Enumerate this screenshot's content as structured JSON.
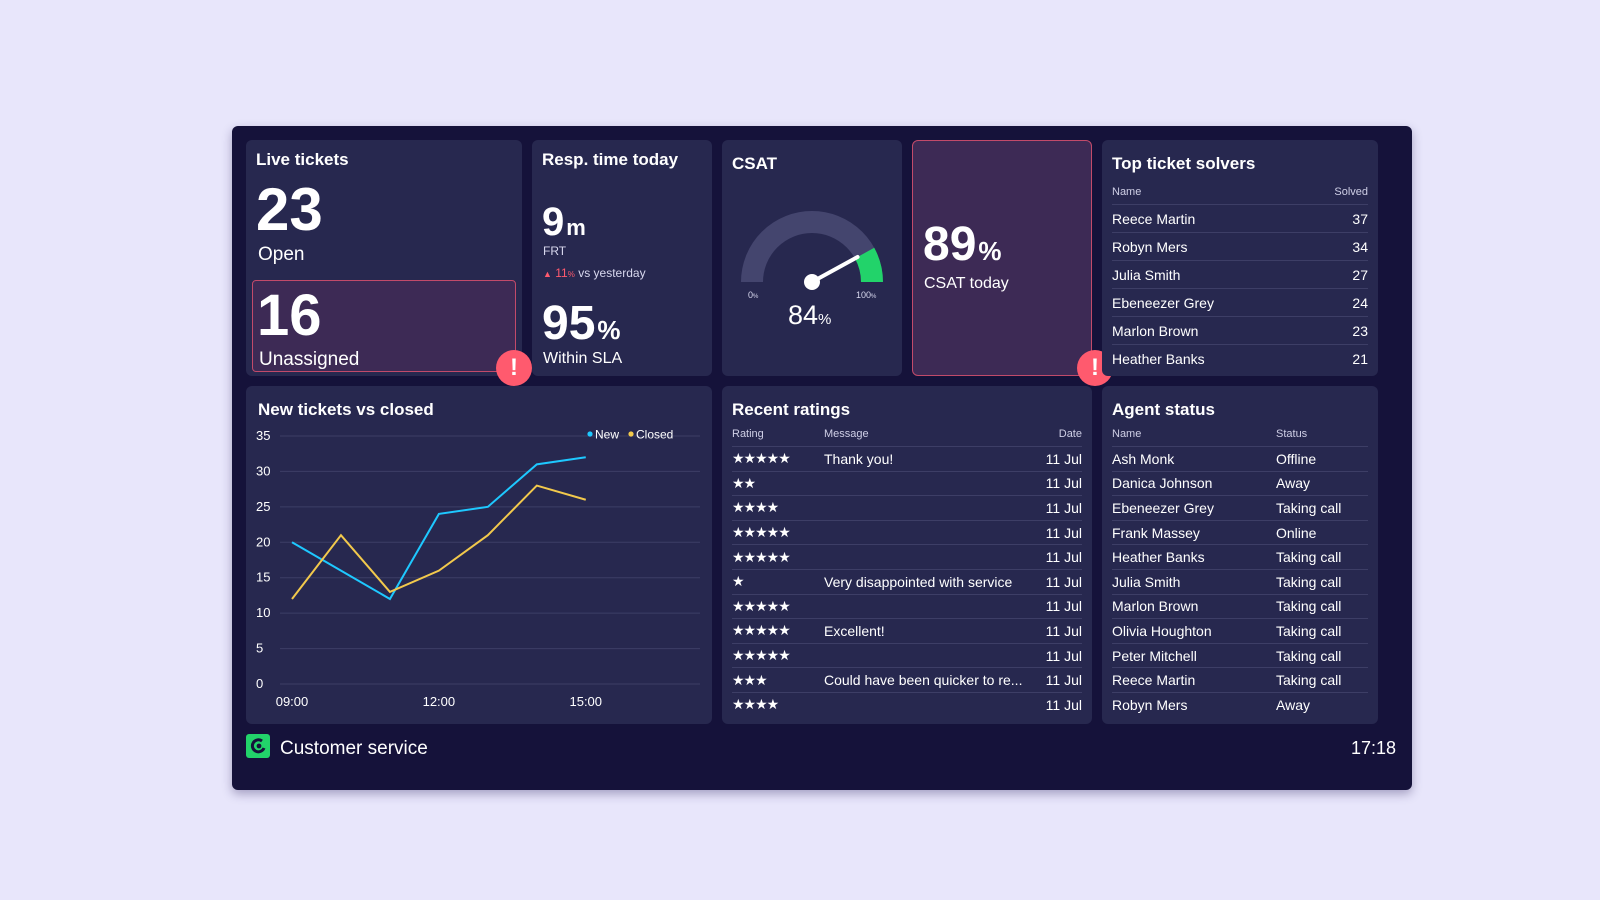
{
  "live_tickets": {
    "title": "Live tickets",
    "open_value": "23",
    "open_label": "Open",
    "unassigned_value": "16",
    "unassigned_label": "Unassigned",
    "alert_icon": "!"
  },
  "resp_time": {
    "title": "Resp. time today",
    "frt_value": "9",
    "frt_unit": "m",
    "frt_label": "FRT",
    "change_value": "11",
    "change_unit": "%",
    "change_label": "vs yesterday",
    "sla_value": "95",
    "sla_unit": "%",
    "sla_label": "Within SLA"
  },
  "csat": {
    "title": "CSAT",
    "gauge_min": "0",
    "gauge_min_unit": "%",
    "gauge_max": "100",
    "gauge_max_unit": "%",
    "gauge_value": "84",
    "gauge_unit": "%",
    "gauge_fraction": 0.84
  },
  "csat_today": {
    "value": "89",
    "unit": "%",
    "label": "CSAT today",
    "alert_icon": "!"
  },
  "top_solvers": {
    "title": "Top ticket solvers",
    "col_name": "Name",
    "col_solved": "Solved",
    "rows": [
      {
        "name": "Reece Martin",
        "solved": "37"
      },
      {
        "name": "Robyn Mers",
        "solved": "34"
      },
      {
        "name": "Julia Smith",
        "solved": "27"
      },
      {
        "name": "Ebeneezer Grey",
        "solved": "24"
      },
      {
        "name": "Marlon Brown",
        "solved": "23"
      },
      {
        "name": "Heather Banks",
        "solved": "21"
      }
    ]
  },
  "chart_data": {
    "type": "line",
    "title": "New tickets vs closed",
    "x": [
      "09:00",
      "10:00",
      "11:00",
      "12:00",
      "13:00",
      "14:00",
      "15:00"
    ],
    "x_ticks": [
      "09:00",
      "12:00",
      "15:00"
    ],
    "y_ticks": [
      "0",
      "5",
      "10",
      "15",
      "20",
      "25",
      "30",
      "35"
    ],
    "ylim": [
      0,
      35
    ],
    "grid": true,
    "legend_position": "top-right",
    "series": [
      {
        "name": "New",
        "color": "#1ec8ff",
        "values": [
          20,
          16,
          12,
          24,
          25,
          31,
          32
        ]
      },
      {
        "name": "Closed",
        "color": "#f2c94c",
        "values": [
          12,
          21,
          13,
          16,
          21,
          28,
          26
        ]
      }
    ]
  },
  "ratings": {
    "title": "Recent ratings",
    "col_rating": "Rating",
    "col_message": "Message",
    "col_date": "Date",
    "rows": [
      {
        "stars": "★★★★★",
        "message": "Thank you!",
        "date": "11 Jul"
      },
      {
        "stars": "★★",
        "message": "",
        "date": "11 Jul"
      },
      {
        "stars": "★★★★",
        "message": "",
        "date": "11 Jul"
      },
      {
        "stars": "★★★★★",
        "message": "",
        "date": "11 Jul"
      },
      {
        "stars": "★★★★★",
        "message": "",
        "date": "11 Jul"
      },
      {
        "stars": "★",
        "message": "Very disappointed with service",
        "date": "11 Jul"
      },
      {
        "stars": "★★★★★",
        "message": "",
        "date": "11 Jul"
      },
      {
        "stars": "★★★★★",
        "message": "Excellent!",
        "date": "11 Jul"
      },
      {
        "stars": "★★★★★",
        "message": "",
        "date": "11 Jul"
      },
      {
        "stars": "★★★",
        "message": "Could have been quicker to re...",
        "date": "11 Jul"
      },
      {
        "stars": "★★★★",
        "message": "",
        "date": "11 Jul"
      }
    ]
  },
  "agents": {
    "title": "Agent status",
    "col_name": "Name",
    "col_status": "Status",
    "rows": [
      {
        "name": "Ash Monk",
        "status": "Offline"
      },
      {
        "name": "Danica Johnson",
        "status": "Away"
      },
      {
        "name": "Ebeneezer Grey",
        "status": "Taking call"
      },
      {
        "name": "Frank Massey",
        "status": "Online"
      },
      {
        "name": "Heather Banks",
        "status": "Taking call"
      },
      {
        "name": "Julia Smith",
        "status": "Taking call"
      },
      {
        "name": "Marlon Brown",
        "status": "Taking call"
      },
      {
        "name": "Olivia Houghton",
        "status": "Taking call"
      },
      {
        "name": "Peter Mitchell",
        "status": "Taking call"
      },
      {
        "name": "Reece Martin",
        "status": "Taking call"
      },
      {
        "name": "Robyn Mers",
        "status": "Away"
      }
    ]
  },
  "footer": {
    "title": "Customer service",
    "time": "17:18",
    "logo_icon": "geckoboard-logo-icon"
  }
}
